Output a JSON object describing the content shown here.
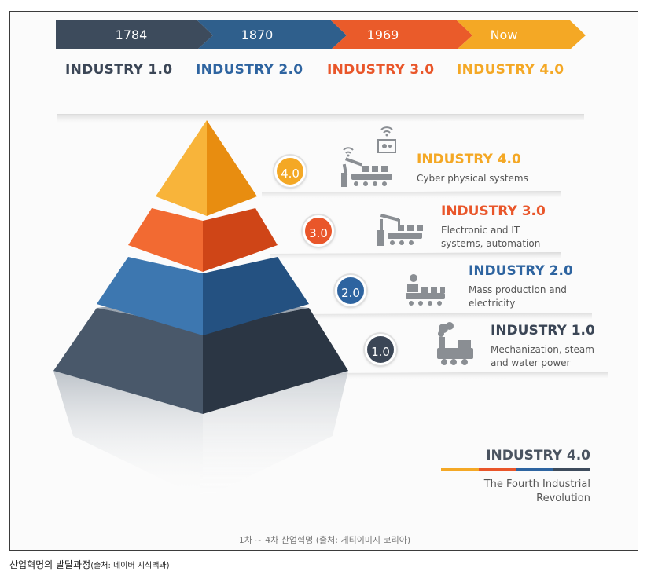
{
  "timeline": [
    {
      "year": "1784",
      "color": "#3d4b5c"
    },
    {
      "year": "1870",
      "color": "#2f5f8c"
    },
    {
      "year": "1969",
      "color": "#ea5b2a"
    },
    {
      "year": "Now",
      "color": "#f4a825"
    }
  ],
  "eras": [
    {
      "label": "INDUSTRY 1.0",
      "color": "#3b4656"
    },
    {
      "label": "INDUSTRY 2.0",
      "color": "#2e64a0"
    },
    {
      "label": "INDUSTRY 3.0",
      "color": "#e9562a"
    },
    {
      "label": "INDUSTRY 4.0",
      "color": "#f4a825"
    }
  ],
  "layers": [
    {
      "badge": "4.0",
      "title": "INDUSTRY 4.0",
      "desc": "Cyber physical systems",
      "color": "#f4a825",
      "icon": "cyber-robot-arm-icon"
    },
    {
      "badge": "3.0",
      "title": "INDUSTRY 3.0",
      "desc": "Electronic and IT\nsystems, automation",
      "color": "#e9562a",
      "icon": "robot-arm-icon"
    },
    {
      "badge": "2.0",
      "title": "INDUSTRY 2.0",
      "desc": "Mass production and\nelectricity",
      "color": "#2e64a0",
      "icon": "assembly-worker-icon"
    },
    {
      "badge": "1.0",
      "title": "INDUSTRY 1.0",
      "desc": "Mechanization, steam\nand water power",
      "color": "#3b4656",
      "icon": "steam-locomotive-icon"
    }
  ],
  "legend": {
    "title": "INDUSTRY 4.0",
    "subtitle": "The Fourth Industrial\nRevolution",
    "bar_colors": [
      "#f4a825",
      "#e9562a",
      "#2e64a0",
      "#3d4b5c"
    ]
  },
  "source_inner": "1차 ~ 4차 산업혁명 (출처: 게티이미지 코리아)",
  "caption": {
    "main": "산업혁명의 발달과정",
    "source": "(출처: 네이버 지식백과)"
  }
}
